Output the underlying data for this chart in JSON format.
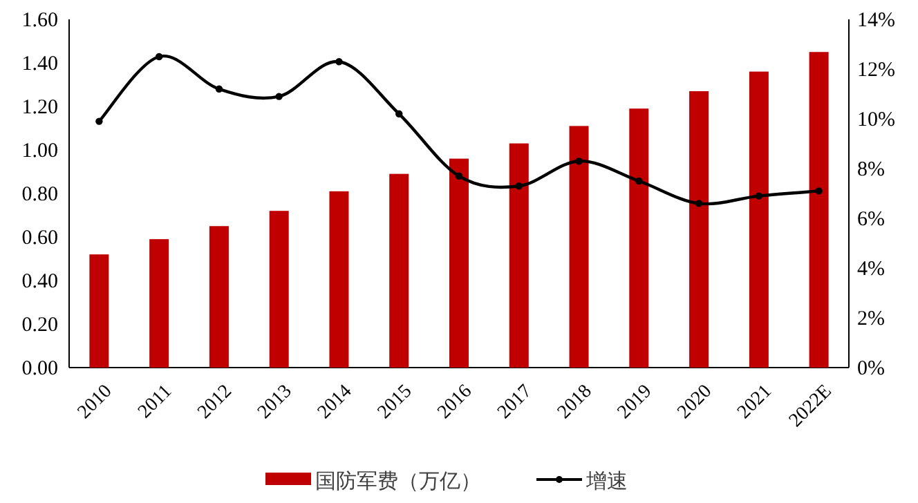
{
  "chart_data": {
    "type": "bar",
    "categories": [
      "2010",
      "2011",
      "2012",
      "2013",
      "2014",
      "2015",
      "2016",
      "2017",
      "2018",
      "2019",
      "2020",
      "2021",
      "2022E"
    ],
    "series": [
      {
        "name": "国防军费（万亿）",
        "color": "#c00000",
        "values": [
          0.52,
          0.59,
          0.65,
          0.72,
          0.81,
          0.89,
          0.96,
          1.03,
          1.11,
          1.19,
          1.27,
          1.36,
          1.45
        ]
      },
      {
        "name": "增速",
        "type": "line",
        "axis": "y2",
        "color": "#000000",
        "marker": "circle",
        "values": [
          9.9,
          12.5,
          11.2,
          10.9,
          12.3,
          10.2,
          7.7,
          7.3,
          8.3,
          7.5,
          6.6,
          6.9,
          7.1
        ]
      }
    ],
    "ylim": [
      0,
      1.6
    ],
    "yticks": [
      {
        "value": 0,
        "label": "0.00"
      },
      {
        "value": 0.2,
        "label": "0.20"
      },
      {
        "value": 0.4,
        "label": "0.40"
      },
      {
        "value": 0.6,
        "label": "0.60"
      },
      {
        "value": 0.8,
        "label": "0.80"
      },
      {
        "value": 1.0,
        "label": "1.00"
      },
      {
        "value": 1.2,
        "label": "1.20"
      },
      {
        "value": 1.4,
        "label": "1.40"
      },
      {
        "value": 1.6,
        "label": "1.60"
      }
    ],
    "y2lim": [
      0,
      14
    ],
    "y2ticks": [
      {
        "value": 0,
        "label": "0%"
      },
      {
        "value": 2,
        "label": "2%"
      },
      {
        "value": 4,
        "label": "4%"
      },
      {
        "value": 6,
        "label": "6%"
      },
      {
        "value": 8,
        "label": "8%"
      },
      {
        "value": 10,
        "label": "10%"
      },
      {
        "value": 12,
        "label": "12%"
      },
      {
        "value": 14,
        "label": "14%"
      }
    ],
    "grid": false,
    "legend": "bottom"
  }
}
